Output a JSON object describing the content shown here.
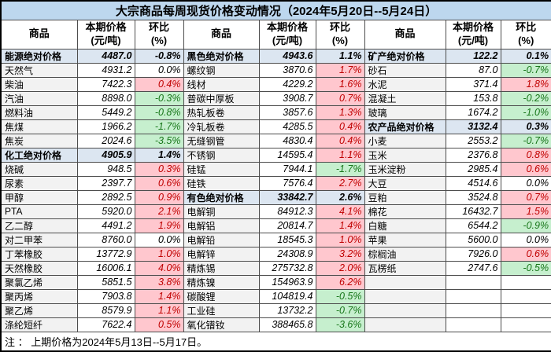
{
  "title": "大宗商品每周现货价格变动情况（2024年5月20日--5月24日）",
  "header": {
    "commodity": "商品",
    "price_line1": "本期价格",
    "price_line2": "(元/吨)",
    "pct_line1": "环比",
    "pct_line2": "(%)"
  },
  "footer_note": "注 ： 上期价格为2024年5月13日--5月17日。",
  "colors": {
    "title_bg": "#bdd7ee",
    "aggregate_row_bg": "#dce6f1",
    "name_col_bg": "#f2f2f2",
    "up_bg": "#ffc7ce",
    "up_text": "#c00000",
    "down_bg": "#c6efce",
    "down_text": "#18771a"
  },
  "groups": [
    {
      "rows": [
        {
          "name": "能源绝对价格",
          "price": "4487.0",
          "pct": "-0.8%",
          "type": "agg"
        },
        {
          "name": "天然气",
          "price": "4931.2",
          "pct": "0.0%",
          "type": "flat"
        },
        {
          "name": "柴油",
          "price": "7422.3",
          "pct": "0.4%",
          "type": "up"
        },
        {
          "name": "汽油",
          "price": "8898.0",
          "pct": "-0.3%",
          "type": "down"
        },
        {
          "name": "燃料油",
          "price": "5449.2",
          "pct": "-0.8%",
          "type": "down"
        },
        {
          "name": "焦煤",
          "price": "1966.2",
          "pct": "-1.7%",
          "type": "down"
        },
        {
          "name": "焦炭",
          "price": "2024.6",
          "pct": "-3.5%",
          "type": "down"
        },
        {
          "name": "化工绝对价格",
          "price": "4905.9",
          "pct": "1.4%",
          "type": "agg"
        },
        {
          "name": "烧碱",
          "price": "948.5",
          "pct": "0.3%",
          "type": "up"
        },
        {
          "name": "尿素",
          "price": "2397.7",
          "pct": "0.6%",
          "type": "up"
        },
        {
          "name": "甲醇",
          "price": "2892.5",
          "pct": "0.9%",
          "type": "up"
        },
        {
          "name": "PTA",
          "price": "5920.0",
          "pct": "2.1%",
          "type": "up"
        },
        {
          "name": "乙二醇",
          "price": "4491.2",
          "pct": "1.9%",
          "type": "up"
        },
        {
          "name": "对二甲苯",
          "price": "8760.0",
          "pct": "0.0%",
          "type": "flat"
        },
        {
          "name": "丁苯橡胶",
          "price": "13772.9",
          "pct": "1.0%",
          "type": "up"
        },
        {
          "name": "天然橡胶",
          "price": "16006.1",
          "pct": "4.0%",
          "type": "up"
        },
        {
          "name": "聚氯乙烯",
          "price": "5851.5",
          "pct": "3.8%",
          "type": "up"
        },
        {
          "name": "聚丙烯",
          "price": "7903.8",
          "pct": "1.4%",
          "type": "up"
        },
        {
          "name": "聚乙烯",
          "price": "8579.9",
          "pct": "1.1%",
          "type": "up"
        },
        {
          "name": "涤纶短纤",
          "price": "7622.4",
          "pct": "0.5%",
          "type": "up"
        }
      ]
    },
    {
      "rows": [
        {
          "name": "黑色绝对价格",
          "price": "4943.6",
          "pct": "1.1%",
          "type": "agg"
        },
        {
          "name": "螺纹钢",
          "price": "3870.6",
          "pct": "1.7%",
          "type": "up"
        },
        {
          "name": "线材",
          "price": "4229.2",
          "pct": "1.6%",
          "type": "up"
        },
        {
          "name": "普碳中厚板",
          "price": "3908.7",
          "pct": "0.7%",
          "type": "up"
        },
        {
          "name": "热轧板卷",
          "price": "3857.6",
          "pct": "1.3%",
          "type": "up"
        },
        {
          "name": "冷轧板卷",
          "price": "4285.5",
          "pct": "0.4%",
          "type": "up"
        },
        {
          "name": "无缝钢管",
          "price": "4830.4",
          "pct": "0.4%",
          "type": "up"
        },
        {
          "name": "不锈钢",
          "price": "14595.4",
          "pct": "1.1%",
          "type": "up"
        },
        {
          "name": "硅锰",
          "price": "7944.1",
          "pct": "-1.7%",
          "type": "down"
        },
        {
          "name": "硅铁",
          "price": "7576.4",
          "pct": "2.7%",
          "type": "up"
        },
        {
          "name": "有色绝对价格",
          "price": "33842.7",
          "pct": "2.6%",
          "type": "agg"
        },
        {
          "name": "电解铜",
          "price": "84912.3",
          "pct": "4.1%",
          "type": "up"
        },
        {
          "name": "电解铝",
          "price": "20814.7",
          "pct": "1.4%",
          "type": "up"
        },
        {
          "name": "电解铅",
          "price": "18545.3",
          "pct": "1.0%",
          "type": "up"
        },
        {
          "name": "电解锌",
          "price": "24308.9",
          "pct": "3.2%",
          "type": "up"
        },
        {
          "name": "精炼锡",
          "price": "275732.8",
          "pct": "2.0%",
          "type": "up"
        },
        {
          "name": "精炼镍",
          "price": "154963.9",
          "pct": "6.2%",
          "type": "up"
        },
        {
          "name": "碳酸锂",
          "price": "104819.4",
          "pct": "-0.5%",
          "type": "down"
        },
        {
          "name": "工业硅",
          "price": "13732.2",
          "pct": "-0.7%",
          "type": "down"
        },
        {
          "name": "氧化镨钕",
          "price": "388465.8",
          "pct": "-3.6%",
          "type": "down"
        }
      ]
    },
    {
      "rows": [
        {
          "name": "矿产绝对价格",
          "price": "122.2",
          "pct": "0.1%",
          "type": "agg"
        },
        {
          "name": "砂石",
          "price": "87.0",
          "pct": "-0.7%",
          "type": "down"
        },
        {
          "name": "水泥",
          "price": "371.4",
          "pct": "1.8%",
          "type": "up"
        },
        {
          "name": "混凝土",
          "price": "153.8",
          "pct": "-0.2%",
          "type": "down"
        },
        {
          "name": "玻璃",
          "price": "1674.2",
          "pct": "-1.0%",
          "type": "down"
        },
        {
          "name": "农产品绝对价格",
          "price": "3132.4",
          "pct": "0.3%",
          "type": "agg"
        },
        {
          "name": "小麦",
          "price": "2553.2",
          "pct": "-0.7%",
          "type": "down"
        },
        {
          "name": "玉米",
          "price": "2376.8",
          "pct": "0.8%",
          "type": "up"
        },
        {
          "name": "玉米淀粉",
          "price": "2985.4",
          "pct": "0.6%",
          "type": "up"
        },
        {
          "name": "大豆",
          "price": "4514.6",
          "pct": "0.0%",
          "type": "flat"
        },
        {
          "name": "豆粕",
          "price": "3524.8",
          "pct": "0.7%",
          "type": "up"
        },
        {
          "name": "棉花",
          "price": "16432.7",
          "pct": "1.5%",
          "type": "up"
        },
        {
          "name": "白糖",
          "price": "6544.2",
          "pct": "-0.9%",
          "type": "down"
        },
        {
          "name": "苹果",
          "price": "5600.0",
          "pct": "0.0%",
          "type": "flat"
        },
        {
          "name": "棕榈油",
          "price": "7926.0",
          "pct": "0.6%",
          "type": "up"
        },
        {
          "name": "瓦楞纸",
          "price": "2747.6",
          "pct": "-0.5%",
          "type": "down"
        },
        {
          "name": "",
          "price": "",
          "pct": "",
          "type": "empty"
        },
        {
          "name": "",
          "price": "",
          "pct": "",
          "type": "empty"
        },
        {
          "name": "",
          "price": "",
          "pct": "",
          "type": "empty"
        },
        {
          "name": "",
          "price": "",
          "pct": "",
          "type": "empty"
        }
      ]
    }
  ]
}
